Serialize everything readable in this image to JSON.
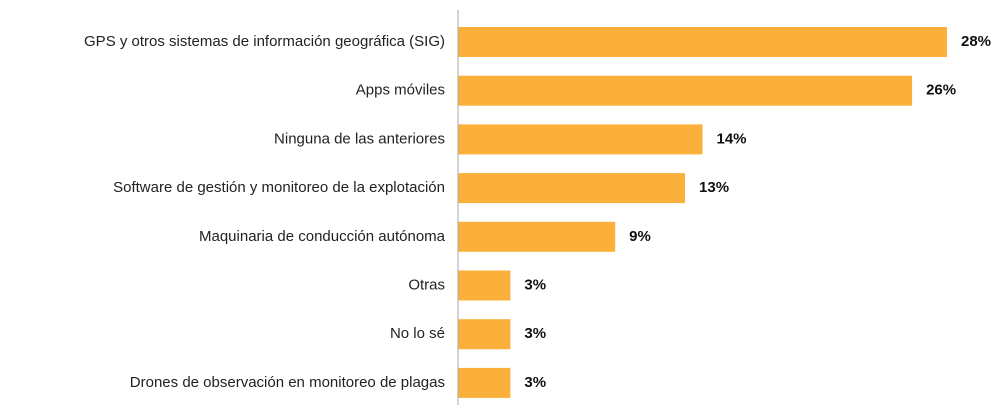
{
  "chart_data": {
    "type": "barh",
    "categories": [
      "GPS y otros sistemas de información geográfica (SIG)",
      "Apps móviles",
      "Ninguna de las anteriores",
      "Software de gestión y monitoreo de la explotación",
      "Maquinaria de conducción autónoma",
      "Otras",
      "No lo sé",
      "Drones de observación en monitoreo de plagas"
    ],
    "values": [
      28,
      26,
      14,
      13,
      9,
      3,
      3,
      3
    ],
    "value_labels": [
      "28%",
      "26%",
      "14%",
      "13%",
      "9%",
      "3%",
      "3%",
      "3%"
    ],
    "color": "#fbb03b"
  }
}
